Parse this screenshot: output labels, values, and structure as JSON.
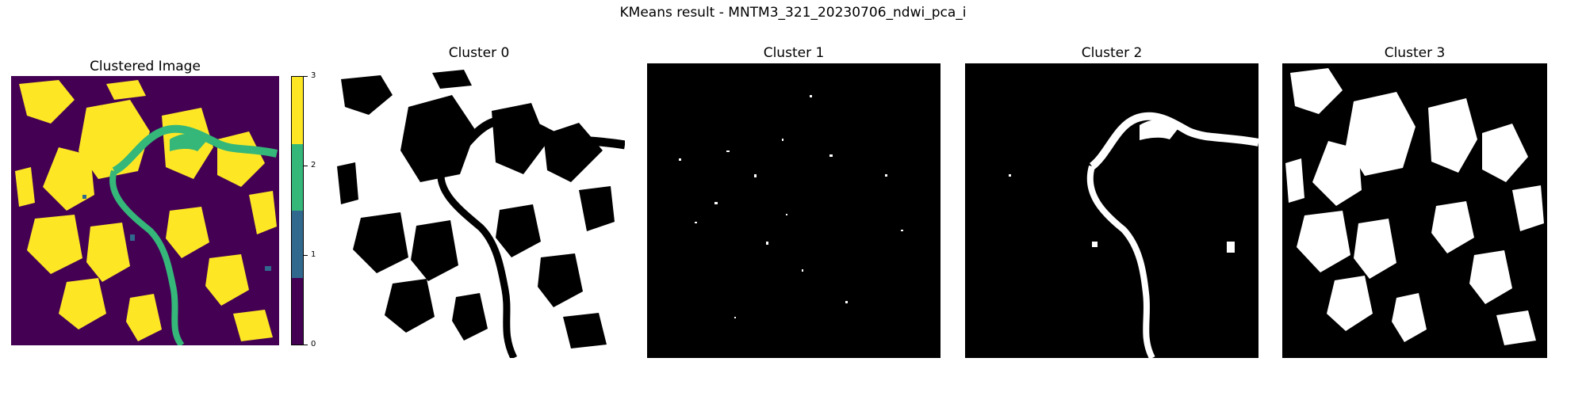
{
  "figure": {
    "title": "KMeans result - MNTM3_321_20230706_ndwi_pca_i"
  },
  "panels": [
    {
      "title": "Clustered Image",
      "kind": "clustered"
    },
    {
      "title": "Cluster 0",
      "kind": "mask"
    },
    {
      "title": "Cluster 1",
      "kind": "mask"
    },
    {
      "title": "Cluster 2",
      "kind": "mask"
    },
    {
      "title": "Cluster 3",
      "kind": "mask"
    }
  ],
  "colorbar": {
    "ticks": [
      "0",
      "1",
      "2",
      "3"
    ],
    "colors": [
      "#440154",
      "#31688e",
      "#35b779",
      "#fde725"
    ]
  }
}
